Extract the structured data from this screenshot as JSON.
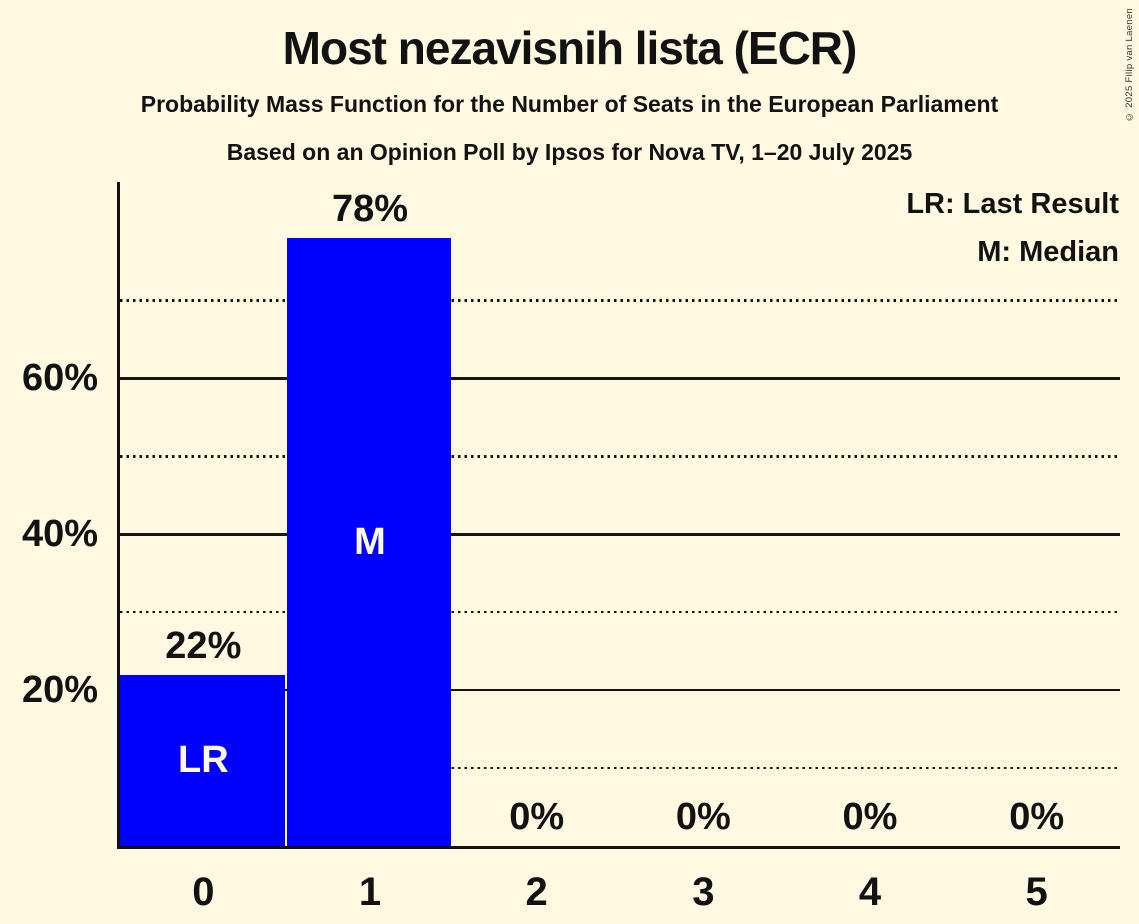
{
  "copyright": "© 2025 Filip van Laenen",
  "colors": {
    "background": "#FFF9E1",
    "bar": "#0000FF",
    "text": "#121212",
    "bar_label_text": "#FFF9E1"
  },
  "chart_data": {
    "type": "bar",
    "title": "Most nezavisnih lista (ECR)",
    "subtitle": "Probability Mass Function for the Number of Seats in the European Parliament",
    "source": "Based on an Opinion Poll by Ipsos for Nova TV, 1–20 July 2025",
    "categories": [
      "0",
      "1",
      "2",
      "3",
      "4",
      "5"
    ],
    "values": [
      22,
      78,
      0,
      0,
      0,
      0
    ],
    "value_labels": [
      "22%",
      "78%",
      "0%",
      "0%",
      "0%",
      "0%"
    ],
    "bar_annotations": [
      "LR",
      "M",
      "",
      "",
      "",
      ""
    ],
    "ylim": [
      0,
      85.2
    ],
    "y_gridlines": [
      {
        "pct": 10,
        "style": "dotted",
        "label": ""
      },
      {
        "pct": 20,
        "style": "solid",
        "label": "20%"
      },
      {
        "pct": 30,
        "style": "dotted",
        "label": ""
      },
      {
        "pct": 40,
        "style": "solid",
        "label": "40%"
      },
      {
        "pct": 50,
        "style": "dotted",
        "label": ""
      },
      {
        "pct": 60,
        "style": "solid",
        "label": "60%"
      },
      {
        "pct": 70,
        "style": "dotted",
        "label": ""
      }
    ],
    "grid": "horizontal",
    "legend_position": "top-right",
    "legend": [
      {
        "key": "LR",
        "label": "LR: Last Result"
      },
      {
        "key": "M",
        "label": "M: Median"
      }
    ]
  }
}
